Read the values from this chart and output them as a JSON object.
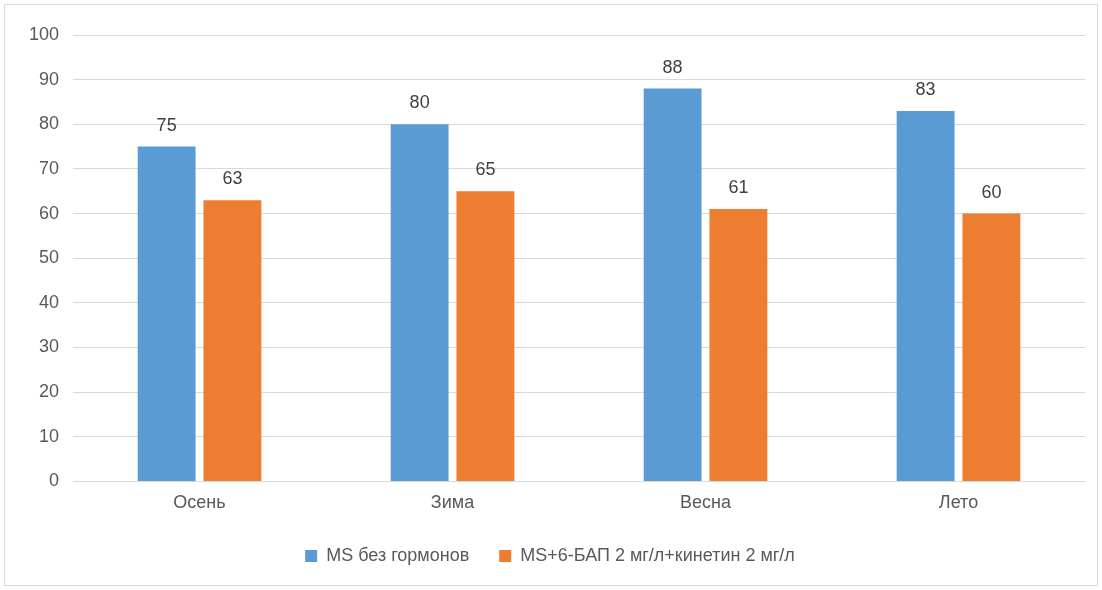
{
  "chart_data": {
    "type": "bar",
    "categories": [
      "Осень",
      "Зима",
      "Весна",
      "Лето"
    ],
    "series": [
      {
        "name": "MS без гормонов",
        "color": "#5b9bd5",
        "values": [
          75,
          80,
          88,
          83
        ]
      },
      {
        "name": "MS+6-БАП 2 мг/л+кинетин 2 мг/л",
        "color": "#ed7d31",
        "values": [
          63,
          65,
          61,
          60
        ]
      }
    ],
    "ylim": [
      0,
      100
    ],
    "yticks": [
      0,
      10,
      20,
      30,
      40,
      50,
      60,
      70,
      80,
      90,
      100
    ],
    "grid": "y",
    "legend": "bottom",
    "data_labels": true
  }
}
